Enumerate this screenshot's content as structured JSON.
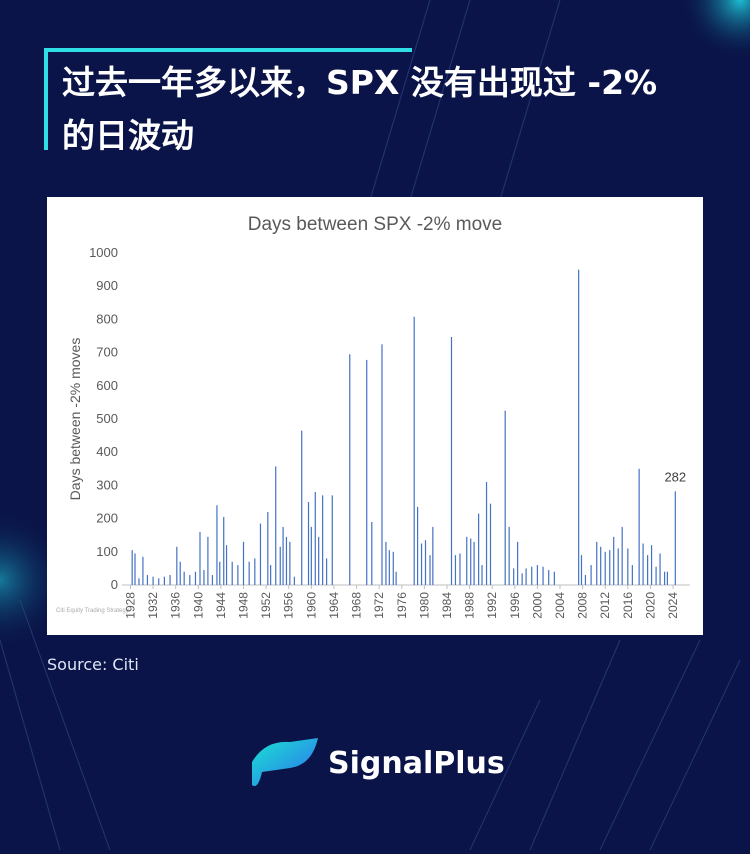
{
  "header": {
    "title": [
      "过去一年多以来，SPX 没有出现过 -2%",
      "的日波动"
    ]
  },
  "chart_data": {
    "type": "bar",
    "title": "Days between SPX -2% move",
    "ylabel": "Days between -2% moves",
    "x": [
      1928.3,
      1928.8,
      1929.5,
      1930.2,
      1931,
      1932,
      1933,
      1934,
      1935,
      1936.2,
      1936.8,
      1937.5,
      1938.5,
      1939.5,
      1940.3,
      1941,
      1941.7,
      1942.5,
      1943.3,
      1943.8,
      1944.5,
      1945,
      1946,
      1947,
      1948,
      1949,
      1950,
      1951,
      1952.3,
      1952.8,
      1953.7,
      1954.5,
      1955,
      1955.6,
      1956.2,
      1957,
      1958.3,
      1959.5,
      1960,
      1960.7,
      1961.3,
      1962,
      1962.7,
      1963.7,
      1966.8,
      1969.8,
      1970.7,
      1972.5,
      1973.2,
      1973.8,
      1974.5,
      1975,
      1978.2,
      1978.8,
      1979.5,
      1980.2,
      1981,
      1981.5,
      1984.8,
      1985.5,
      1986.3,
      1987.5,
      1988.2,
      1988.8,
      1989.6,
      1990.2,
      1991,
      1991.7,
      1994.3,
      1995,
      1995.8,
      1996.5,
      1997.3,
      1998,
      1999,
      2000,
      2001,
      2002,
      2003,
      2007.3,
      2007.8,
      2008.5,
      2009.5,
      2010.5,
      2011.2,
      2012,
      2012.8,
      2013.5,
      2014.3,
      2015,
      2016,
      2016.8,
      2018,
      2018.7,
      2019.5,
      2020.2,
      2021,
      2021.7,
      2022.5,
      2023,
      2024.4
    ],
    "values": [
      105,
      95,
      20,
      85,
      30,
      25,
      20,
      25,
      30,
      115,
      70,
      40,
      30,
      40,
      160,
      45,
      145,
      30,
      240,
      70,
      205,
      120,
      70,
      60,
      130,
      70,
      80,
      185,
      220,
      60,
      357,
      115,
      175,
      145,
      130,
      25,
      465,
      250,
      175,
      280,
      145,
      270,
      80,
      270,
      695,
      678,
      190,
      725,
      130,
      105,
      100,
      40,
      808,
      235,
      125,
      135,
      90,
      175,
      747,
      90,
      95,
      145,
      140,
      130,
      215,
      60,
      310,
      245,
      525,
      175,
      50,
      130,
      35,
      50,
      55,
      60,
      55,
      45,
      40,
      950,
      90,
      30,
      60,
      130,
      115,
      100,
      105,
      145,
      110,
      175,
      110,
      60,
      350,
      125,
      90,
      120,
      55,
      95,
      40,
      40,
      282
    ],
    "color": "#4472c4",
    "xlim": [
      1926.5,
      2027
    ],
    "xticks": [
      1928,
      1932,
      1936,
      1940,
      1944,
      1948,
      1952,
      1956,
      1960,
      1964,
      1968,
      1972,
      1976,
      1980,
      1984,
      1988,
      1992,
      1996,
      2000,
      2004,
      2008,
      2012,
      2016,
      2020,
      2024
    ],
    "ylim": [
      0,
      1000
    ],
    "yticks": [
      0,
      100,
      200,
      300,
      400,
      500,
      600,
      700,
      800,
      900,
      1000
    ],
    "annotation": "282",
    "watermark": "Citi Equity Trading Strategy"
  },
  "source": "Source: Citi",
  "brand": "SignalPlus"
}
